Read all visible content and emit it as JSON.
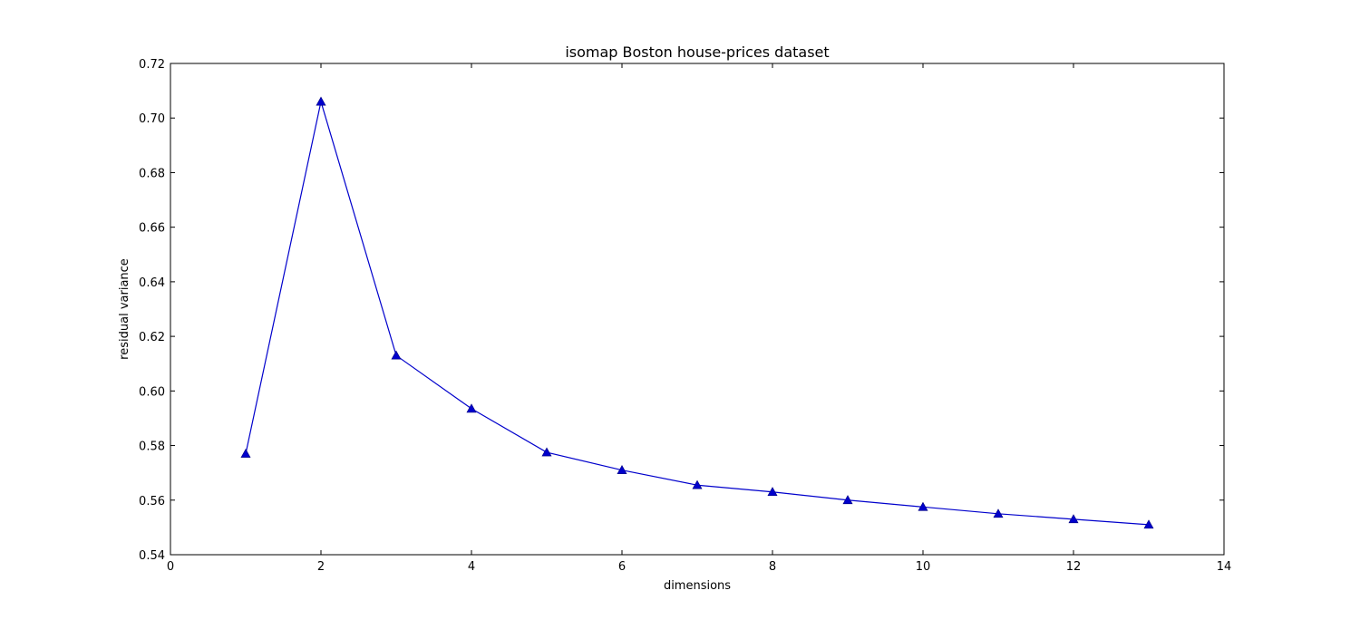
{
  "chart_data": {
    "type": "line",
    "title": "isomap Boston house-prices dataset",
    "xlabel": "dimensions",
    "ylabel": "residual variance",
    "xlim": [
      0,
      14
    ],
    "ylim": [
      0.54,
      0.72
    ],
    "xticks": [
      0,
      2,
      4,
      6,
      8,
      10,
      12,
      14
    ],
    "xtick_labels": [
      "0",
      "2",
      "4",
      "6",
      "8",
      "10",
      "12",
      "14"
    ],
    "yticks": [
      0.54,
      0.56,
      0.58,
      0.6,
      0.62,
      0.64,
      0.66,
      0.68,
      0.7,
      0.72
    ],
    "ytick_labels": [
      "0.54",
      "0.56",
      "0.58",
      "0.60",
      "0.62",
      "0.64",
      "0.66",
      "0.68",
      "0.70",
      "0.72"
    ],
    "grid": false,
    "series": [
      {
        "marker": "triangle-up",
        "color": "#0000cc",
        "x": [
          1,
          2,
          3,
          4,
          5,
          6,
          7,
          8,
          9,
          10,
          11,
          12,
          13
        ],
        "y": [
          0.577,
          0.706,
          0.613,
          0.5935,
          0.5775,
          0.571,
          0.5655,
          0.563,
          0.56,
          0.5575,
          0.555,
          0.553,
          0.551
        ]
      }
    ]
  }
}
